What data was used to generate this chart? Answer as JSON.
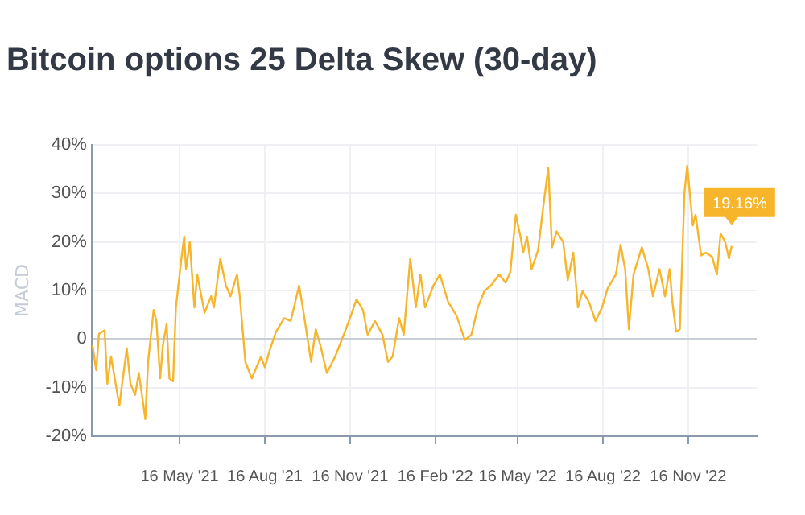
{
  "chart_data": {
    "type": "line",
    "title": "Bitcoin options 25 Delta Skew (30-day)",
    "ylabel": "MACD",
    "x": [
      "2021-02-11",
      "2021-02-15",
      "2021-02-18",
      "2021-02-24",
      "2021-02-27",
      "2021-03-03",
      "2021-03-06",
      "2021-03-12",
      "2021-03-15",
      "2021-03-20",
      "2021-03-24",
      "2021-03-29",
      "2021-04-02",
      "2021-04-07",
      "2021-04-09",
      "2021-04-12",
      "2021-04-18",
      "2021-04-21",
      "2021-04-25",
      "2021-04-28",
      "2021-05-02",
      "2021-05-05",
      "2021-05-09",
      "2021-05-12",
      "2021-05-18",
      "2021-05-21",
      "2021-05-23",
      "2021-05-27",
      "2021-06-01",
      "2021-06-04",
      "2021-06-12",
      "2021-06-19",
      "2021-06-22",
      "2021-06-29",
      "2021-07-05",
      "2021-07-10",
      "2021-07-17",
      "2021-07-20",
      "2021-07-26",
      "2021-08-02",
      "2021-08-07",
      "2021-08-12",
      "2021-08-16",
      "2021-08-21",
      "2021-08-28",
      "2021-09-06",
      "2021-09-13",
      "2021-09-22",
      "2021-09-26",
      "2021-10-05",
      "2021-10-10",
      "2021-10-15",
      "2021-10-22",
      "2021-10-31",
      "2021-11-07",
      "2021-11-16",
      "2021-11-23",
      "2021-11-30",
      "2021-12-05",
      "2021-12-13",
      "2021-12-21",
      "2021-12-27",
      "2022-01-01",
      "2022-01-08",
      "2022-01-13",
      "2022-01-20",
      "2022-01-26",
      "2022-01-31",
      "2022-02-05",
      "2022-02-14",
      "2022-02-21",
      "2022-03-02",
      "2022-03-11",
      "2022-03-20",
      "2022-03-27",
      "2022-04-03",
      "2022-04-10",
      "2022-04-17",
      "2022-04-26",
      "2022-05-03",
      "2022-05-08",
      "2022-05-14",
      "2022-05-19",
      "2022-05-22",
      "2022-05-26",
      "2022-05-31",
      "2022-06-07",
      "2022-06-13",
      "2022-06-18",
      "2022-06-22",
      "2022-06-27",
      "2022-07-04",
      "2022-07-09",
      "2022-07-15",
      "2022-07-20",
      "2022-07-25",
      "2022-08-01",
      "2022-08-08",
      "2022-08-15",
      "2022-08-21",
      "2022-08-30",
      "2022-09-04",
      "2022-09-09",
      "2022-09-13",
      "2022-09-18",
      "2022-09-27",
      "2022-10-04",
      "2022-10-09",
      "2022-10-16",
      "2022-10-22",
      "2022-10-27",
      "2022-10-30",
      "2022-11-03",
      "2022-11-07",
      "2022-11-12",
      "2022-11-15",
      "2022-11-21",
      "2022-11-24",
      "2022-11-30",
      "2022-12-05",
      "2022-12-12",
      "2022-12-17",
      "2022-12-21",
      "2022-12-26",
      "2022-12-30",
      "2023-01-02"
    ],
    "series": [
      {
        "color": "#f7b52c",
        "values": [
          -1.3,
          -6.4,
          1.1,
          1.8,
          -9.2,
          -3.6,
          -7,
          -13.7,
          -9.2,
          -1.9,
          -9.2,
          -11.5,
          -7,
          -13.7,
          -16.5,
          -4.7,
          6,
          3.7,
          -8.1,
          -1.3,
          3.1,
          -8.1,
          -8.7,
          6.5,
          16.6,
          21.1,
          14.4,
          20,
          6.5,
          13.3,
          5.4,
          8.8,
          6.5,
          16.6,
          11,
          8.8,
          13.3,
          8.8,
          -4.7,
          -8.1,
          -5.8,
          -3.6,
          -5.8,
          -2.5,
          1.5,
          4.3,
          3.7,
          11,
          6.5,
          -4.7,
          2,
          -1.3,
          -7,
          -3.6,
          -0.2,
          4.3,
          8.2,
          6,
          0.9,
          3.7,
          0.9,
          -4.7,
          -3.6,
          4.3,
          0.9,
          16.6,
          6.5,
          13.3,
          6.5,
          11,
          13.3,
          7.6,
          4.8,
          -0.2,
          0.9,
          6.5,
          9.9,
          11,
          13.3,
          11.6,
          13.8,
          25.6,
          21.1,
          17.8,
          21.1,
          14.4,
          18.3,
          27.9,
          35.2,
          18.9,
          22.2,
          20,
          12.1,
          17.8,
          6.5,
          9.9,
          7.6,
          3.7,
          6.5,
          10.4,
          13.3,
          19.4,
          14.4,
          2,
          13.3,
          18.9,
          14.4,
          8.8,
          14.4,
          8.8,
          14.4,
          7.6,
          1.5,
          2,
          30.1,
          35.7,
          23.4,
          25.6,
          17.2,
          17.8,
          16.9,
          13.3,
          21.7,
          20,
          16.6,
          19.16
        ]
      }
    ],
    "xlim": [
      "2021-02-10",
      "2023-01-29"
    ],
    "xticks": [
      {
        "value": "2021-05-16",
        "label": "16 May '21"
      },
      {
        "value": "2021-08-16",
        "label": "16 Aug '21"
      },
      {
        "value": "2021-11-16",
        "label": "16 Nov '21"
      },
      {
        "value": "2022-02-16",
        "label": "16 Feb '22"
      },
      {
        "value": "2022-05-16",
        "label": "16 May '22"
      },
      {
        "value": "2022-08-16",
        "label": "16 Aug '22"
      },
      {
        "value": "2022-11-16",
        "label": "16 Nov '22"
      }
    ],
    "ylim": [
      -20,
      40
    ],
    "yticks": [
      {
        "value": -20,
        "label": "-20%"
      },
      {
        "value": -10,
        "label": "-10%"
      },
      0,
      {
        "value": 10,
        "label": "10%"
      },
      {
        "value": 20,
        "label": "20%"
      },
      {
        "value": 30,
        "label": "30%"
      },
      {
        "value": 40,
        "label": "40%"
      }
    ],
    "annotations": [
      {
        "text": "19.16%",
        "x": "2023-01-02",
        "y": 19.16
      }
    ],
    "grid": true,
    "legend": false,
    "marker": "none",
    "line_style": "solid"
  }
}
